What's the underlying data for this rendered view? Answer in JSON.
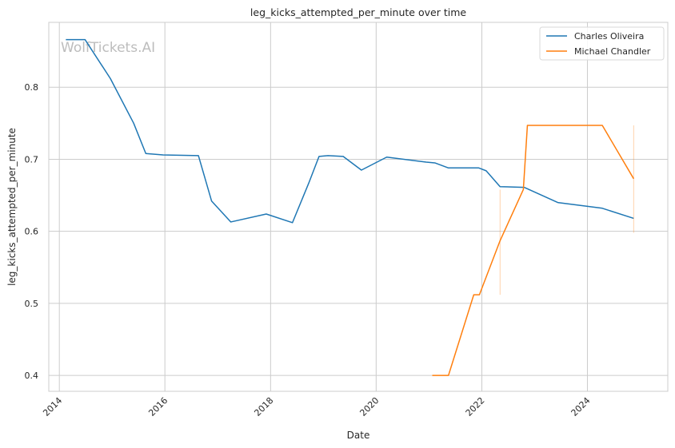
{
  "chart_data": {
    "type": "line",
    "title": "leg_kicks_attempted_per_minute over time",
    "xlabel": "Date",
    "ylabel": "leg_kicks_attempted_per_minute",
    "watermark": "WolfTickets.AI",
    "xlim": [
      "2013-10-20",
      "2025-07-10"
    ],
    "ylim": [
      0.378,
      0.89
    ],
    "x_ticks": [
      "2014",
      "2016",
      "2018",
      "2020",
      "2022",
      "2024"
    ],
    "y_ticks": [
      "0.4",
      "0.5",
      "0.6",
      "0.7",
      "0.8"
    ],
    "grid": true,
    "legend_position": "top-right",
    "series": [
      {
        "name": "Charles Oliveira",
        "color": "#1f77b4",
        "points": [
          [
            "2014-02-15",
            0.866
          ],
          [
            "2014-06-28",
            0.866
          ],
          [
            "2014-12-20",
            0.812
          ],
          [
            "2015-05-30",
            0.75
          ],
          [
            "2015-08-22",
            0.708
          ],
          [
            "2015-12-19",
            0.706
          ],
          [
            "2016-08-20",
            0.705
          ],
          [
            "2016-11-19",
            0.642
          ],
          [
            "2017-04-01",
            0.613
          ],
          [
            "2017-12-02",
            0.624
          ],
          [
            "2018-06-01",
            0.612
          ],
          [
            "2018-09-22",
            0.667
          ],
          [
            "2018-12-02",
            0.704
          ],
          [
            "2019-02-02",
            0.705
          ],
          [
            "2019-05-18",
            0.704
          ],
          [
            "2019-09-21",
            0.685
          ],
          [
            "2020-03-14",
            0.703
          ],
          [
            "2020-12-12",
            0.696
          ],
          [
            "2021-02-10",
            0.695
          ],
          [
            "2021-05-15",
            0.688
          ],
          [
            "2021-12-11",
            0.688
          ],
          [
            "2022-01-31",
            0.684
          ],
          [
            "2022-05-07",
            0.662
          ],
          [
            "2022-10-22",
            0.661
          ],
          [
            "2023-06-10",
            0.64
          ],
          [
            "2024-04-13",
            0.632
          ],
          [
            "2024-11-16",
            0.618
          ]
        ]
      },
      {
        "name": "Michael Chandler",
        "color": "#ff7f0e",
        "points": [
          [
            "2021-01-23",
            0.4
          ],
          [
            "2021-05-15",
            0.4
          ],
          [
            "2021-11-06",
            0.512
          ],
          [
            "2021-12-15",
            0.512
          ],
          [
            "2022-05-07",
            0.587
          ],
          [
            "2022-10-15",
            0.658
          ],
          [
            "2022-11-12",
            0.747
          ],
          [
            "2024-04-13",
            0.747
          ],
          [
            "2024-11-16",
            0.673
          ]
        ],
        "error_bars": [
          {
            "x": "2022-05-07",
            "low": 0.512,
            "high": 0.658
          },
          {
            "x": "2024-11-16",
            "low": 0.598,
            "high": 0.747
          }
        ]
      }
    ]
  }
}
